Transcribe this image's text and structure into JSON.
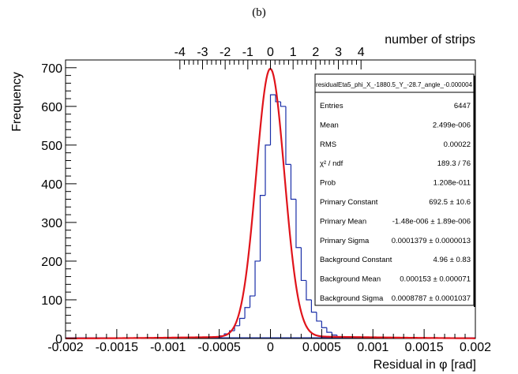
{
  "panel_label": "(b)",
  "chart_data": {
    "type": "bar",
    "histogram_name": "residualEta5_phi_X_-1880.5_Y_-28.7_angle_-0.000004",
    "xlabel": "Residual in φ [rad]",
    "ylabel": "Frequency",
    "top_axis_label": "number of strips",
    "xlim": [
      -0.002,
      0.002
    ],
    "ylim": [
      0,
      720
    ],
    "x_ticks": [
      "-0.002",
      "-0.0015",
      "-0.001",
      "-0.0005",
      "0",
      "0.0005",
      "0.001",
      "0.0015",
      "0.002"
    ],
    "y_ticks": [
      "0",
      "100",
      "200",
      "300",
      "400",
      "500",
      "600",
      "700"
    ],
    "top_ticks": [
      "-4",
      "-3",
      "-2",
      "-1",
      "0",
      "1",
      "2",
      "3",
      "4"
    ],
    "strip_to_rad": 0.000221,
    "bins": {
      "x": [
        -0.0006,
        -0.00055,
        -0.0005,
        -0.00045,
        -0.0004,
        -0.00035,
        -0.0003,
        -0.00025,
        -0.0002,
        -0.00015,
        -0.0001,
        -5e-05,
        0,
        5e-05,
        0.0001,
        0.00015,
        0.0002,
        0.00025,
        0.0003,
        0.00035,
        0.0004,
        0.00045,
        0.0005,
        0.00055,
        0.0006,
        0.00065
      ],
      "values": [
        3,
        5,
        7,
        12,
        20,
        33,
        52,
        80,
        110,
        200,
        370,
        500,
        630,
        612,
        600,
        450,
        360,
        235,
        150,
        100,
        68,
        45,
        28,
        16,
        9,
        5
      ],
      "bin_width": 5e-05
    },
    "fit_curve": {
      "primary_constant": 692.5,
      "primary_mean": -1.48e-06,
      "primary_sigma": 0.0001379,
      "background_constant": 4.96,
      "background_mean": 0.000153,
      "background_sigma": 0.0008787
    },
    "stats_box": [
      {
        "label": "Entries",
        "value": "6447"
      },
      {
        "label": "Mean",
        "value": "2.499e-006"
      },
      {
        "label": "RMS",
        "value": "0.00022"
      },
      {
        "label": "χ² / ndf",
        "value": "189.3 / 76"
      },
      {
        "label": "Prob",
        "value": "1.208e-011"
      },
      {
        "label": "Primary Constant",
        "value": "692.5 ± 10.6"
      },
      {
        "label": "Primary Mean",
        "value": "-1.48e-006 ± 1.89e-006"
      },
      {
        "label": "Primary Sigma",
        "value": "0.0001379 ± 0.0000013"
      },
      {
        "label": "Background Constant",
        "value": "4.96 ± 0.83"
      },
      {
        "label": "Background Mean",
        "value": "0.000153 ± 0.000071"
      },
      {
        "label": "Background Sigma",
        "value": "0.0008787 ± 0.0001037"
      }
    ],
    "colors": {
      "histogram": "#1a2fa8",
      "fit": "#e0141b",
      "axes": "#000000"
    }
  }
}
